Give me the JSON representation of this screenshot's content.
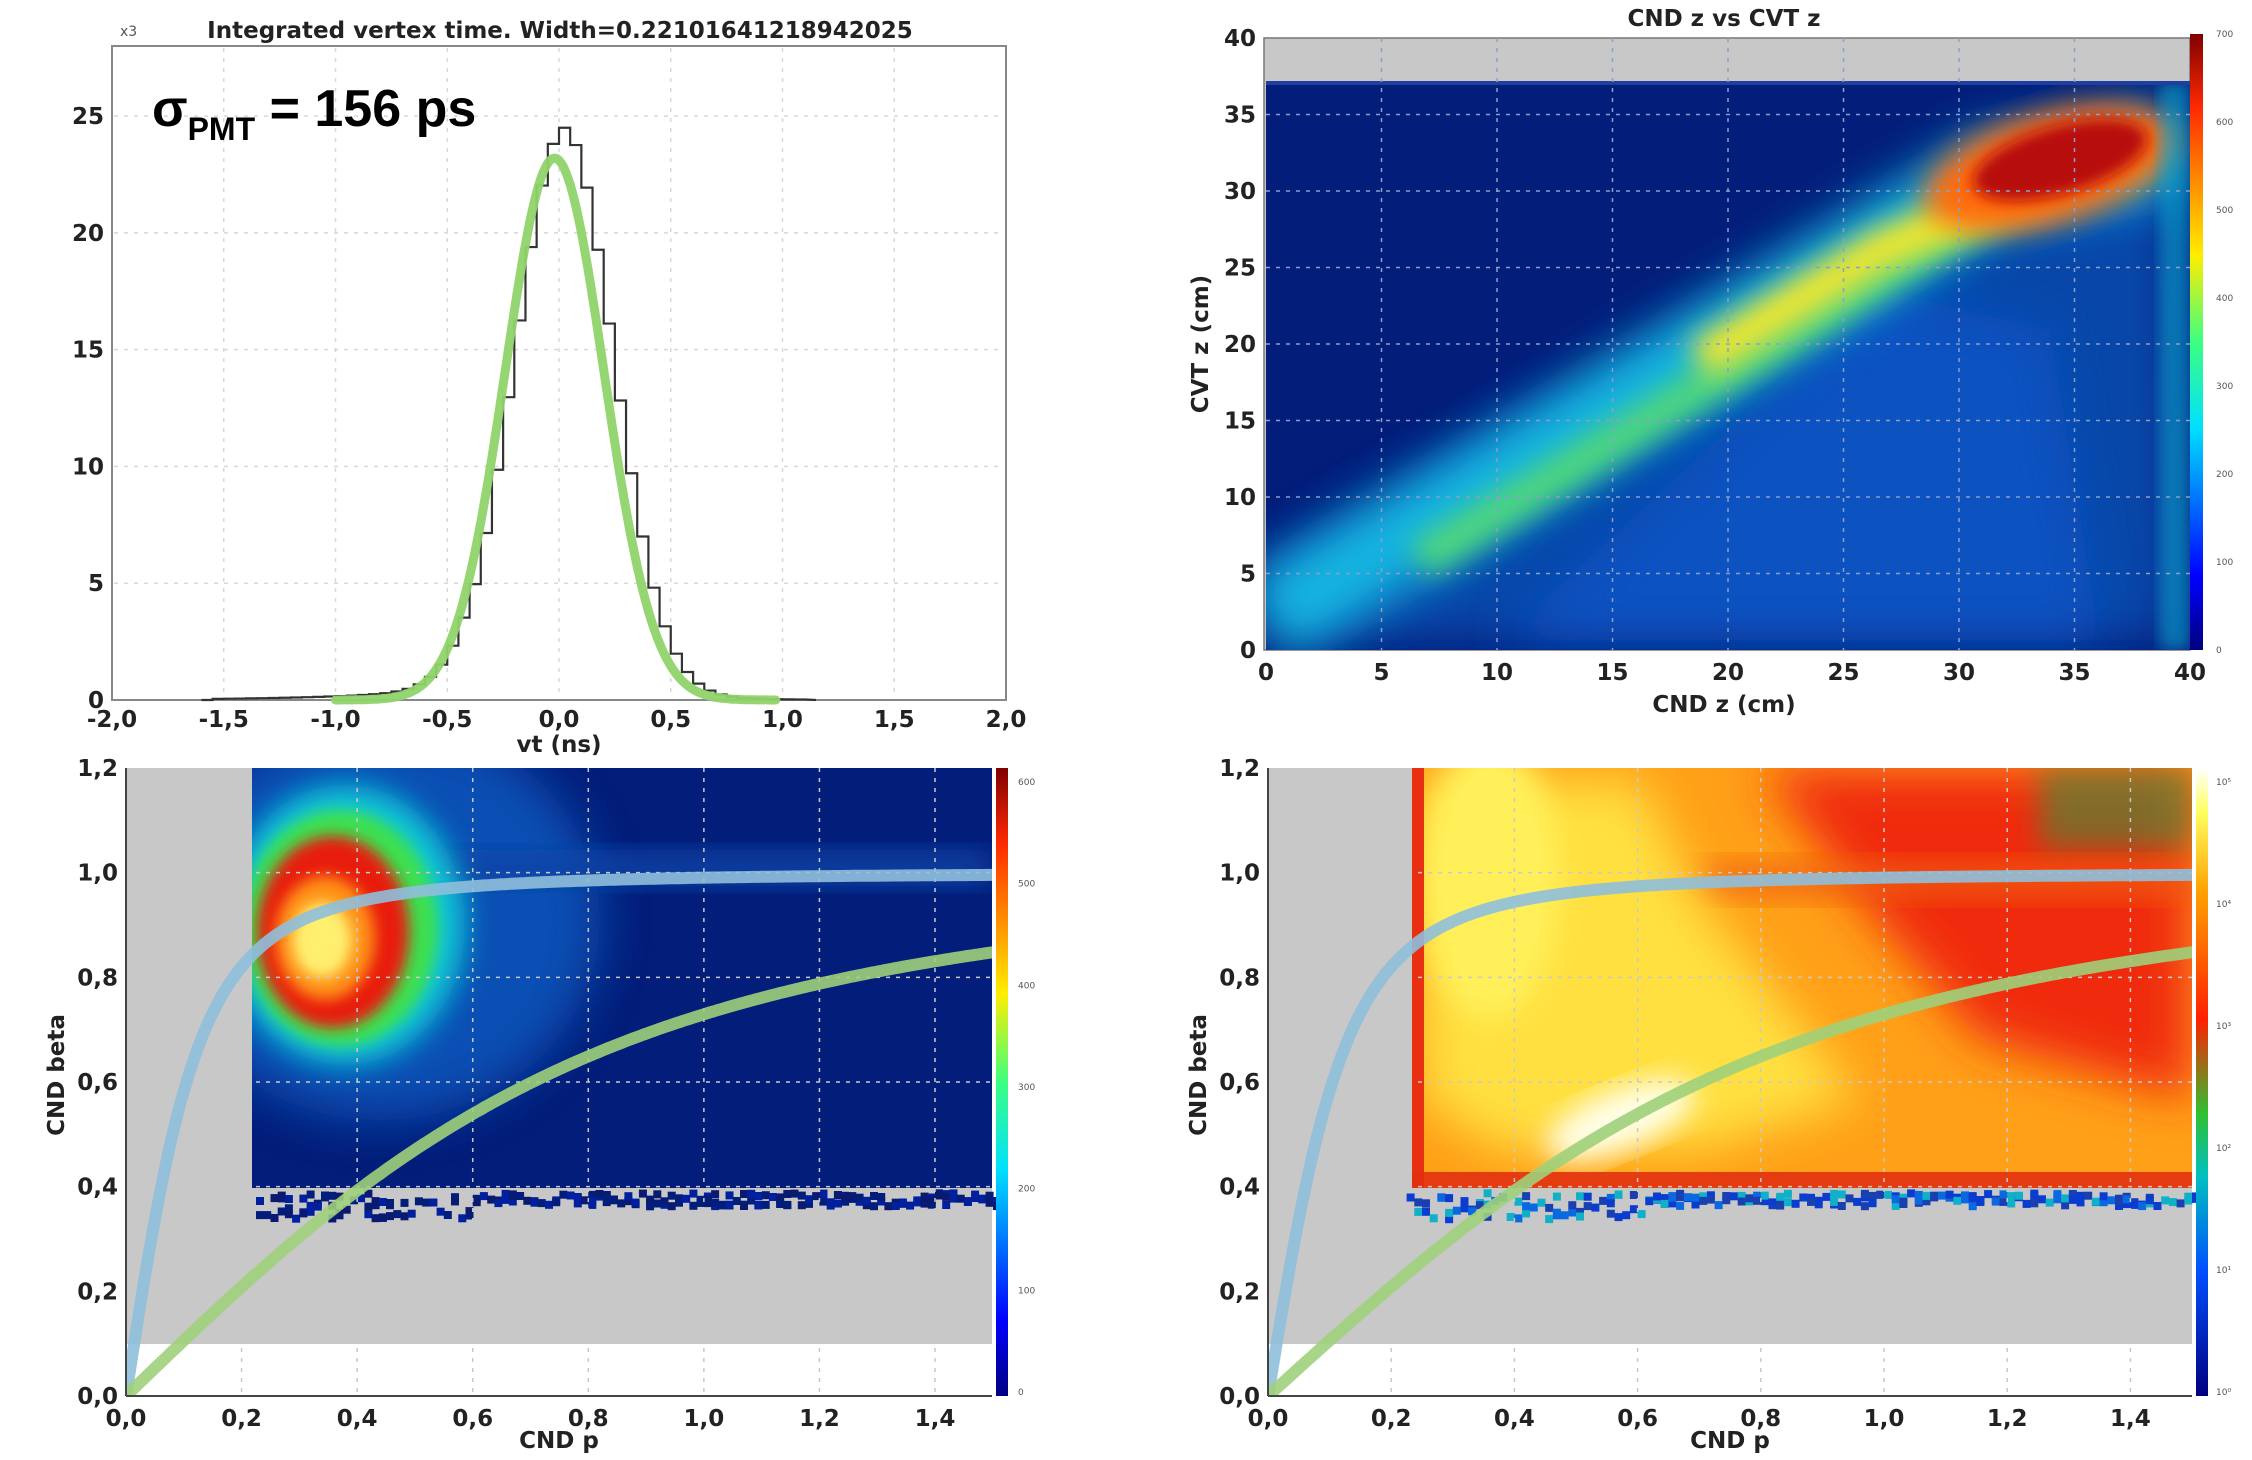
{
  "colors": {
    "fit_green": "#8fd46a",
    "histogram": "#333333",
    "guide_blue": "#8fbfdc",
    "guide_green": "#9ed07a",
    "excluded_region": "#c8c8c8",
    "grid": "#c9c9c9"
  },
  "chart_data": [
    {
      "id": "top-left",
      "type": "histogram",
      "title": "Integrated vertex time. Width=0.22101641218942025",
      "y_multiplier": "x3",
      "annotation": {
        "symbol": "σ",
        "subscript": "PMT",
        "text": " = 156 ps"
      },
      "xlabel": "vt (ns)",
      "ylabel": "",
      "xlim": [
        -2.0,
        2.0
      ],
      "ylim": [
        0,
        28
      ],
      "xticks": [
        "-2,0",
        "-1,5",
        "-1,0",
        "-0,5",
        "0,0",
        "0,5",
        "1,0",
        "1,5",
        "2,0"
      ],
      "yticks": [
        "0",
        "5",
        "10",
        "15",
        "20",
        "25"
      ],
      "grid": true,
      "series": [
        {
          "name": "",
          "style": "step",
          "x_center": 0.0,
          "peak": 23.6,
          "sigma": 0.221
        },
        {
          "name": "",
          "style": "gaussian_fit",
          "mu": -0.02,
          "amplitude": 23.2,
          "sigma": 0.221
        }
      ]
    },
    {
      "id": "top-right",
      "type": "heatmap",
      "title": "CND z vs CVT z",
      "xlabel": "CND z (cm)",
      "ylabel": "CVT z (cm)",
      "xlim": [
        0,
        40
      ],
      "ylim": [
        0,
        40
      ],
      "xticks": [
        "0",
        "5",
        "10",
        "15",
        "20",
        "25",
        "30",
        "35",
        "40"
      ],
      "yticks": [
        "0",
        "5",
        "10",
        "15",
        "20",
        "25",
        "30",
        "35",
        "40"
      ],
      "grid": true,
      "excluded_region": {
        "y_from": 37,
        "y_to": 40
      },
      "colorbar_labels": [
        "0",
        "100",
        "200",
        "300",
        "400",
        "500",
        "600",
        "700"
      ],
      "colormap": "jet",
      "peak": {
        "x": 34,
        "y": 31.5
      },
      "band": "diagonal ridge from (0,0) to (35,32), plateau above z=30"
    },
    {
      "id": "bottom-left",
      "type": "heatmap",
      "title": "",
      "xlabel": "CND p",
      "ylabel": "CND beta",
      "xlim": [
        0.0,
        1.5
      ],
      "ylim": [
        0.0,
        1.2
      ],
      "xticks": [
        "0,0",
        "0,2",
        "0,4",
        "0,6",
        "0,8",
        "1,0",
        "1,2",
        "1,4"
      ],
      "yticks": [
        "0,0",
        "0,2",
        "0,4",
        "0,6",
        "0,8",
        "1,0",
        "1,2"
      ],
      "grid": true,
      "excluded_region": {
        "y_from": 0.1,
        "y_to": 1.2,
        "x_below_p": 0.22,
        "beta_below": 0.4
      },
      "colorbar_labels": [
        "0",
        "100",
        "200",
        "300",
        "400",
        "500",
        "600"
      ],
      "colormap": "jet",
      "peak": {
        "x": 0.33,
        "y": 0.88
      },
      "guide_curves": [
        {
          "name": "",
          "color": "blue",
          "mass_gev": 0.1396
        },
        {
          "name": "",
          "color": "green",
          "mass_gev": 0.938
        }
      ]
    },
    {
      "id": "bottom-right",
      "type": "heatmap",
      "title": "",
      "xlabel": "CND p",
      "ylabel": "CND beta",
      "xlim": [
        0.0,
        1.5
      ],
      "ylim": [
        0.0,
        1.2
      ],
      "xticks": [
        "0,0",
        "0,2",
        "0,4",
        "0,6",
        "0,8",
        "1,0",
        "1,2",
        "1,4"
      ],
      "yticks": [
        "0,0",
        "0,2",
        "0,4",
        "0,6",
        "0,8",
        "1,0",
        "1,2"
      ],
      "grid": true,
      "excluded_region": {
        "y_from": 0.1,
        "y_to": 1.2,
        "x_below_p": 0.22,
        "beta_below": 0.4
      },
      "colorbar_labels": [
        "10⁰",
        "10¹",
        "10²",
        "10³",
        "10⁴",
        "10⁵"
      ],
      "colormap": "log-hot",
      "peak": {
        "x": 0.5,
        "y": 0.5
      },
      "guide_curves": [
        {
          "name": "",
          "color": "blue",
          "mass_gev": 0.1396
        },
        {
          "name": "",
          "color": "green",
          "mass_gev": 0.938
        }
      ]
    }
  ]
}
